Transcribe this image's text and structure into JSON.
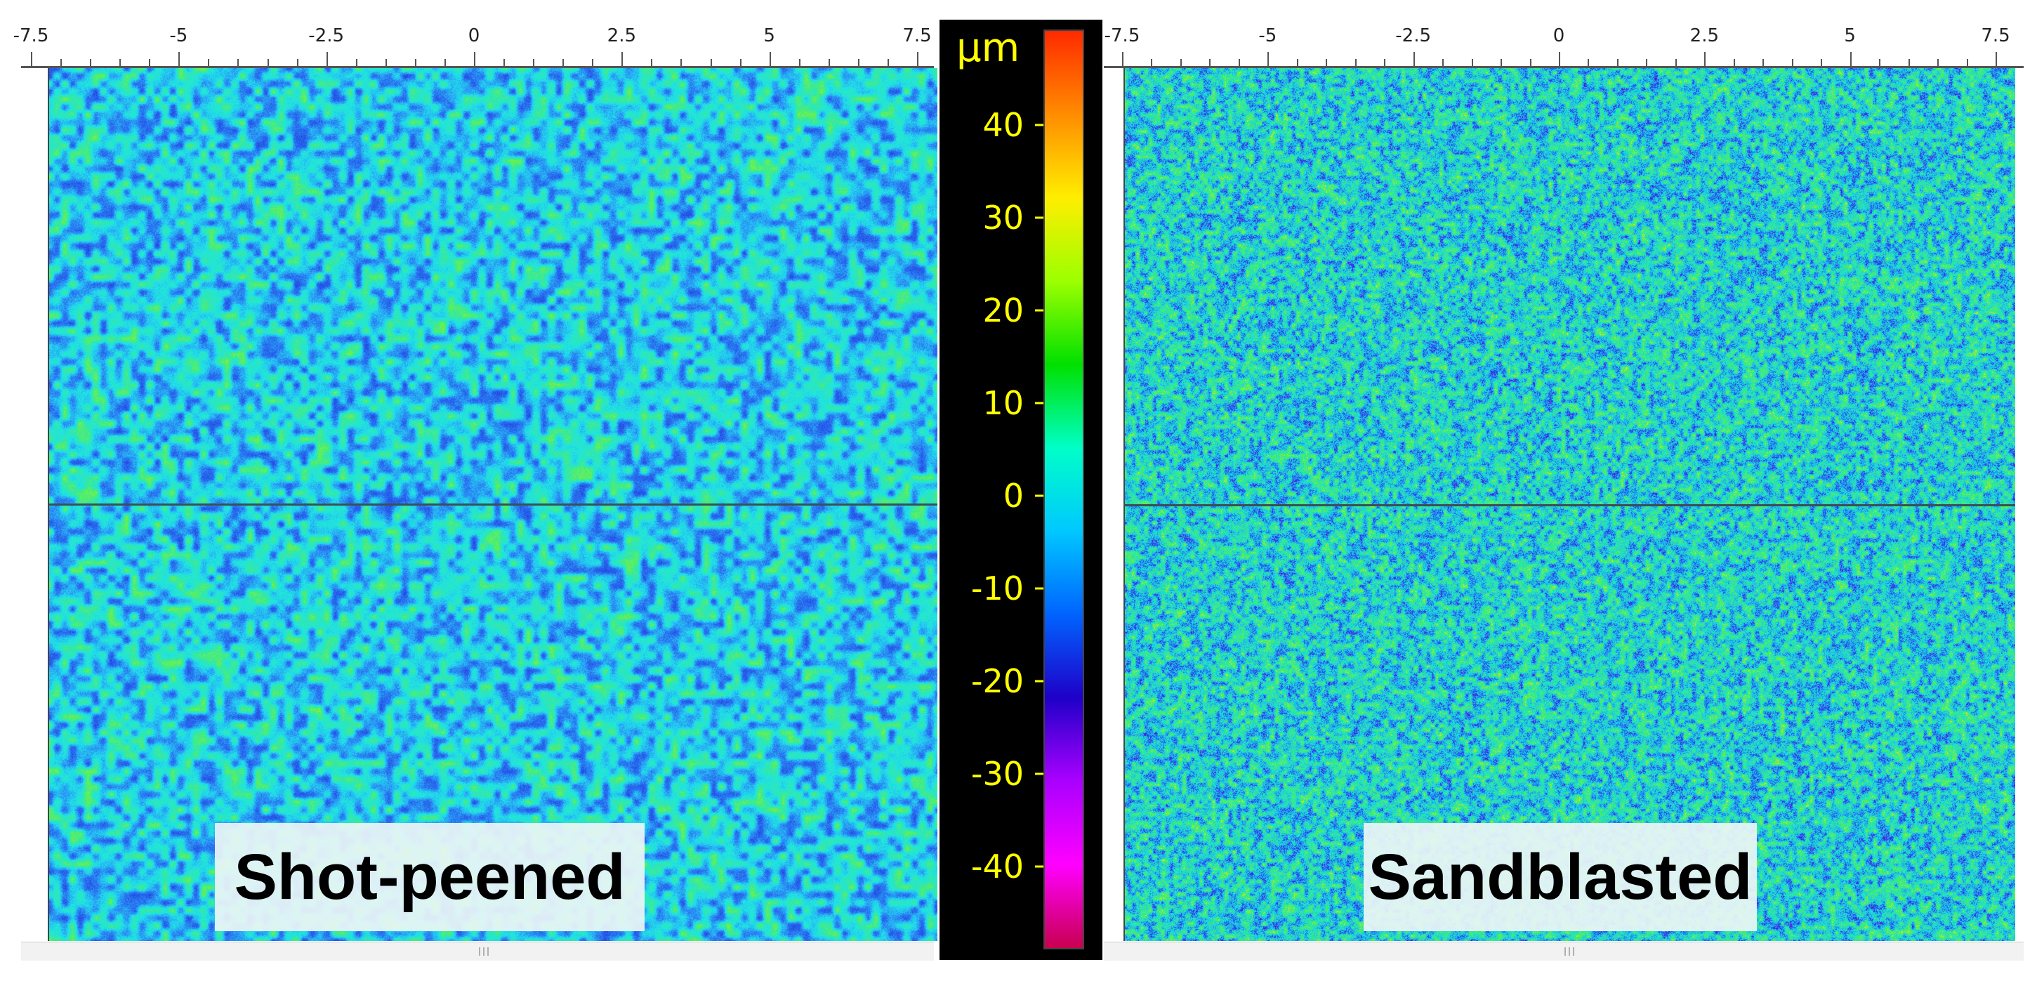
{
  "left_panel": {
    "label": "Shot-peened",
    "x_ticks": [
      "-7.5",
      "-5",
      "-2.5",
      "0",
      "2.5",
      "5",
      "7.5"
    ]
  },
  "right_panel": {
    "label": "Sandblasted",
    "x_ticks": [
      "-7.5",
      "-5",
      "-2.5",
      "0",
      "2.5",
      "5",
      "7.5"
    ]
  },
  "colorbar": {
    "unit": "μm",
    "ticks": [
      "40",
      "30",
      "20",
      "10",
      "0",
      "-10",
      "-20",
      "-30",
      "-40"
    ],
    "range": [
      -50,
      50
    ],
    "colors": [
      "#ff2a00",
      "#ff8c00",
      "#ffee00",
      "#9cff00",
      "#00e000",
      "#00ffc8",
      "#00c8ff",
      "#0064ff",
      "#1e00c8",
      "#aa00ff",
      "#ff00ff",
      "#c80050"
    ]
  }
}
